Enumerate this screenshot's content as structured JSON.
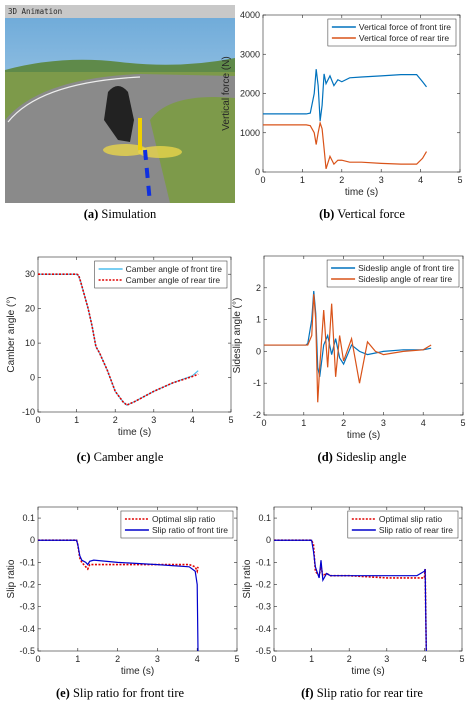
{
  "simulation": {
    "title_bar": "3D Animation"
  },
  "captions": [
    {
      "label": "(a)",
      "text": "Simulation"
    },
    {
      "label": "(b)",
      "text": "Vertical force"
    },
    {
      "label": "(c)",
      "text": "Camber angle"
    },
    {
      "label": "(d)",
      "text": "Sideslip angle"
    },
    {
      "label": "(e)",
      "text": "Slip ratio for front tire"
    },
    {
      "label": "(f)",
      "text": "Slip ratio for rear tire"
    }
  ],
  "chart_data": [
    {
      "type": "line",
      "xlabel": "time (s)",
      "ylabel": "Vertical force (N)",
      "xlim": [
        0,
        5
      ],
      "xticks": [
        0,
        1,
        2,
        3,
        4,
        5
      ],
      "ylim": [
        0,
        4000
      ],
      "yticks": [
        0,
        1000,
        2000,
        3000,
        4000
      ],
      "legend": "upper right",
      "grid": false,
      "x": [
        0,
        1.1,
        1.2,
        1.3,
        1.35,
        1.4,
        1.45,
        1.5,
        1.55,
        1.6,
        1.7,
        1.8,
        1.9,
        2.0,
        2.2,
        2.5,
        3,
        3.5,
        3.9,
        4.05,
        4.15
      ],
      "series": [
        {
          "name": "Vertical force of front tire",
          "color": "#0072bd",
          "dash": "solid",
          "values": [
            1480,
            1480,
            1500,
            2000,
            2620,
            2200,
            1300,
            1700,
            2500,
            2250,
            2450,
            2200,
            2350,
            2300,
            2400,
            2420,
            2450,
            2480,
            2480,
            2300,
            2170
          ]
        },
        {
          "name": "Vertical force of rear tire",
          "color": "#d95319",
          "dash": "solid",
          "values": [
            1200,
            1200,
            1180,
            1000,
            700,
            1000,
            1250,
            1100,
            600,
            80,
            400,
            200,
            300,
            300,
            250,
            250,
            220,
            200,
            200,
            350,
            520
          ]
        }
      ]
    },
    {
      "type": "line",
      "xlabel": "time (s)",
      "ylabel": "Camber angle (°)",
      "xlim": [
        0,
        5
      ],
      "xticks": [
        0,
        1,
        2,
        3,
        4,
        5
      ],
      "ylim": [
        -10,
        35
      ],
      "yticks": [
        -10,
        0,
        10,
        20,
        30
      ],
      "legend": "upper right",
      "grid": false,
      "x": [
        0,
        1,
        1.05,
        1.1,
        1.2,
        1.3,
        1.4,
        1.5,
        1.6,
        1.8,
        2.0,
        2.2,
        2.3,
        2.5,
        3,
        3.5,
        4,
        4.15
      ],
      "series": [
        {
          "name": "Camber angle of front tire",
          "color": "#4dbeee",
          "dash": "solid",
          "values": [
            30,
            30,
            29.5,
            28,
            24,
            20,
            15,
            9,
            7,
            2,
            -4,
            -7,
            -8,
            -7,
            -4,
            -1.5,
            0.5,
            2
          ]
        },
        {
          "name": "Camber angle of rear tire",
          "color": "#e00000",
          "dash": "dotted",
          "values": [
            30,
            30,
            29.8,
            28,
            24,
            20,
            15,
            9,
            7,
            2,
            -4,
            -7,
            -8,
            -7,
            -4,
            -1.5,
            0.3,
            1
          ]
        }
      ]
    },
    {
      "type": "line",
      "xlabel": "time (s)",
      "ylabel": "Sideslip angle (°)",
      "xlim": [
        0,
        5
      ],
      "xticks": [
        0,
        1,
        2,
        3,
        4,
        5
      ],
      "ylim": [
        -2,
        3
      ],
      "yticks": [
        -2,
        -1,
        0,
        1,
        2
      ],
      "legend": "upper right",
      "grid": false,
      "x": [
        0,
        1.05,
        1.1,
        1.2,
        1.25,
        1.3,
        1.35,
        1.4,
        1.5,
        1.6,
        1.7,
        1.8,
        1.9,
        2.0,
        2.2,
        2.4,
        2.6,
        2.8,
        3,
        3.5,
        4,
        4.2
      ],
      "series": [
        {
          "name": "Sideslip angle of front tire",
          "color": "#0072bd",
          "dash": "solid",
          "values": [
            0.2,
            0.2,
            0.25,
            1,
            1.9,
            1.2,
            -0.5,
            -0.8,
            0.2,
            0.5,
            -0.1,
            0.4,
            -0.2,
            -0.4,
            0.2,
            0,
            -0.1,
            -0.05,
            0,
            0.05,
            0.05,
            0.1
          ]
        },
        {
          "name": "Sideslip angle of rear tire",
          "color": "#d95319",
          "dash": "solid",
          "values": [
            0.2,
            0.2,
            0.2,
            0.5,
            1.8,
            1,
            -1.6,
            -0.5,
            1.3,
            -0.5,
            1.5,
            -0.8,
            0.5,
            -0.3,
            0.4,
            -1,
            0.3,
            0,
            -0.1,
            0,
            0.05,
            0.2
          ]
        }
      ]
    },
    {
      "type": "line",
      "xlabel": "time (s)",
      "ylabel": "Slip ratio",
      "xlim": [
        0,
        5
      ],
      "xticks": [
        0,
        1,
        2,
        3,
        4,
        5
      ],
      "ylim": [
        -0.5,
        0.15
      ],
      "yticks": [
        -0.5,
        -0.4,
        -0.3,
        -0.2,
        -0.1,
        0,
        0.1
      ],
      "legend": "upper right",
      "grid": false,
      "x": [
        0,
        0.97,
        1,
        1.05,
        1.1,
        1.2,
        1.25,
        1.3,
        1.4,
        2,
        3,
        3.8,
        3.95,
        4,
        4.02
      ],
      "series": [
        {
          "name": "Optimal slip ratio",
          "color": "#e00000",
          "dash": "dotted",
          "values": [
            0,
            0,
            -0.02,
            -0.08,
            -0.1,
            -0.12,
            -0.13,
            -0.11,
            -0.11,
            -0.11,
            -0.11,
            -0.11,
            -0.12,
            -0.14,
            -0.12
          ]
        },
        {
          "name": "Slip ratio of front tire",
          "color": "#0000cc",
          "dash": "solid",
          "values": [
            0,
            0,
            -0.02,
            -0.07,
            -0.09,
            -0.1,
            -0.11,
            -0.095,
            -0.09,
            -0.1,
            -0.11,
            -0.12,
            -0.14,
            -0.2,
            -0.5
          ]
        }
      ]
    },
    {
      "type": "line",
      "xlabel": "time (s)",
      "ylabel": "Slip ratio",
      "xlim": [
        0,
        5
      ],
      "xticks": [
        0,
        1,
        2,
        3,
        4,
        5
      ],
      "ylim": [
        -0.5,
        0.15
      ],
      "yticks": [
        -0.5,
        -0.4,
        -0.3,
        -0.2,
        -0.1,
        0,
        0.1
      ],
      "legend": "upper right",
      "grid": false,
      "x": [
        0,
        1.0,
        1.05,
        1.1,
        1.2,
        1.25,
        1.3,
        1.4,
        1.5,
        2,
        3,
        3.8,
        4,
        4.02,
        4.05
      ],
      "series": [
        {
          "name": "Optimal slip ratio",
          "color": "#e00000",
          "dash": "dotted",
          "values": [
            0,
            0,
            -0.02,
            -0.14,
            -0.16,
            -0.12,
            -0.16,
            -0.15,
            -0.16,
            -0.16,
            -0.17,
            -0.17,
            -0.17,
            -0.13,
            -0.5
          ]
        },
        {
          "name": "Slip ratio of rear tire",
          "color": "#0000cc",
          "dash": "solid",
          "values": [
            0,
            0,
            -0.05,
            -0.12,
            -0.17,
            -0.09,
            -0.18,
            -0.15,
            -0.16,
            -0.16,
            -0.16,
            -0.16,
            -0.14,
            -0.13,
            -0.5
          ]
        }
      ]
    }
  ]
}
